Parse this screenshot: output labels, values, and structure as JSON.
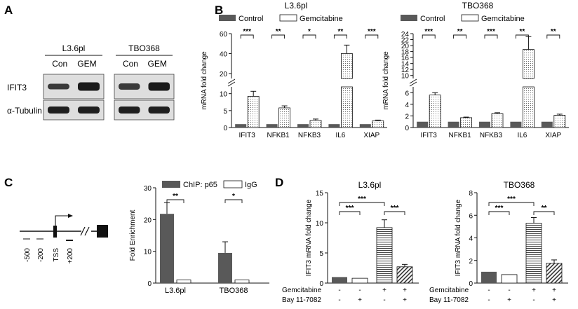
{
  "panels": {
    "A": {
      "letter": "A",
      "groups": [
        {
          "name": "L3.6pl",
          "lanes": [
            "Con",
            "GEM"
          ]
        },
        {
          "name": "TBO368",
          "lanes": [
            "Con",
            "GEM"
          ]
        }
      ],
      "rows": [
        "IFIT3",
        "α-Tubulin"
      ]
    },
    "B": {
      "letter": "B"
    },
    "C": {
      "letter": "C",
      "gene_labels": [
        "-500",
        "-200",
        "TSS",
        "+200"
      ]
    },
    "D": {
      "letter": "D"
    }
  },
  "colors": {
    "control": "#595959",
    "treated": "#ffffff",
    "axis": "#111111"
  },
  "chart_data": [
    {
      "id": "B-L3.6pl",
      "type": "bar",
      "title": "L3.6pl",
      "ylabel": "mRNA fold change",
      "categories": [
        "IFIT3",
        "NFKB1",
        "NFKB3",
        "IL6",
        "XIAP"
      ],
      "legend": [
        "Control",
        "Gemcitabine"
      ],
      "series": [
        {
          "name": "Control",
          "values": [
            1,
            1,
            1,
            1,
            1
          ]
        },
        {
          "name": "Gemcitabine",
          "values": [
            9.2,
            5.8,
            2.1,
            40,
            2.0
          ],
          "errors": [
            1.5,
            0.6,
            0.4,
            8.5,
            0.2
          ]
        }
      ],
      "axis_break": true,
      "lower_ticks": [
        0,
        5,
        10
      ],
      "upper_ticks": [
        20,
        40,
        60
      ],
      "significance": [
        "***",
        "**",
        "*",
        "**",
        "***"
      ]
    },
    {
      "id": "B-TBO368",
      "type": "bar",
      "title": "TBO368",
      "ylabel": "mRNA fold change",
      "categories": [
        "IFIT3",
        "NFKB1",
        "NFKB3",
        "IL6",
        "XIAP"
      ],
      "legend": [
        "Control",
        "Gemcitabine"
      ],
      "series": [
        {
          "name": "Control",
          "values": [
            1,
            1,
            1,
            1,
            1
          ]
        },
        {
          "name": "Gemcitabine",
          "values": [
            5.6,
            1.7,
            2.4,
            18.7,
            2.1
          ],
          "errors": [
            0.4,
            0.1,
            0.15,
            4.3,
            0.2
          ]
        }
      ],
      "axis_break": true,
      "lower_ticks": [
        0,
        2,
        4,
        6
      ],
      "upper_ticks": [
        10,
        12,
        14,
        16,
        18,
        20,
        22,
        24
      ],
      "significance": [
        "***",
        "**",
        "***",
        "**",
        "**"
      ]
    },
    {
      "id": "C",
      "type": "bar",
      "ylabel": "Fold Enrichment",
      "categories": [
        "L3.6pl",
        "TBO368"
      ],
      "legend": [
        "ChIP: p65",
        "IgG"
      ],
      "series": [
        {
          "name": "ChIP: p65",
          "values": [
            21.8,
            9.5
          ],
          "errors": [
            3.5,
            3.5
          ]
        },
        {
          "name": "IgG",
          "values": [
            1,
            1
          ]
        }
      ],
      "ylim": [
        0,
        30
      ],
      "ticks": [
        0,
        10,
        20,
        30
      ],
      "significance": [
        "**",
        "*"
      ]
    },
    {
      "id": "D-L3.6pl",
      "type": "bar",
      "title": "L3.6pl",
      "ylabel": "IFIT3 mRNA fold change",
      "values": [
        1,
        0.8,
        9.2,
        2.7
      ],
      "errors": [
        0,
        0,
        1.3,
        0.4
      ],
      "ylim": [
        0,
        15
      ],
      "ticks": [
        0,
        5,
        10,
        15
      ],
      "row_labels": [
        "Gemcitabine",
        "Bay 11-7082"
      ],
      "row_signs": [
        [
          "-",
          "-",
          "+",
          "+"
        ],
        [
          "-",
          "+",
          "-",
          "+"
        ]
      ],
      "significance": [
        "***",
        "***",
        "***"
      ]
    },
    {
      "id": "D-TBO368",
      "type": "bar",
      "title": "TBO368",
      "ylabel": "IFIT3 mRNA fold change",
      "values": [
        1,
        0.75,
        5.3,
        1.75
      ],
      "errors": [
        0,
        0,
        0.5,
        0.3
      ],
      "ylim": [
        0,
        8
      ],
      "ticks": [
        0,
        2,
        4,
        6,
        8
      ],
      "row_labels": [
        "Gemcitabine",
        "Bay 11-7082"
      ],
      "row_signs": [
        [
          "-",
          "-",
          "+",
          "+"
        ],
        [
          "-",
          "+",
          "-",
          "+"
        ]
      ],
      "significance": [
        "***",
        "***",
        "**"
      ]
    }
  ]
}
